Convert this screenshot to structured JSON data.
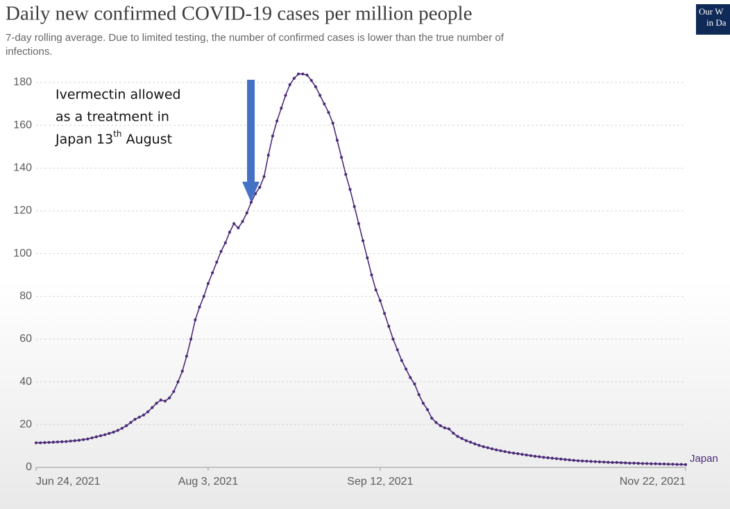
{
  "chart_data": {
    "type": "line",
    "title": "Daily new confirmed COVID-19 cases per million people",
    "subtitle": [
      "7-day rolling average. Due to limited testing, the number of confirmed cases is lower than the true number of",
      "infections."
    ],
    "logo": [
      "Our W",
      "in Da"
    ],
    "annotation": {
      "lines": [
        "Ivermectin allowed",
        "as a treatment in"
      ],
      "last_line": [
        "Japan 13",
        "th",
        " August"
      ]
    },
    "x": [
      "2021-06-24",
      "2021-06-25",
      "2021-06-26",
      "2021-06-27",
      "2021-06-28",
      "2021-06-29",
      "2021-06-30",
      "2021-07-01",
      "2021-07-02",
      "2021-07-03",
      "2021-07-04",
      "2021-07-05",
      "2021-07-06",
      "2021-07-07",
      "2021-07-08",
      "2021-07-09",
      "2021-07-10",
      "2021-07-11",
      "2021-07-12",
      "2021-07-13",
      "2021-07-14",
      "2021-07-15",
      "2021-07-16",
      "2021-07-17",
      "2021-07-18",
      "2021-07-19",
      "2021-07-20",
      "2021-07-21",
      "2021-07-22",
      "2021-07-23",
      "2021-07-24",
      "2021-07-25",
      "2021-07-26",
      "2021-07-27",
      "2021-07-28",
      "2021-07-29",
      "2021-07-30",
      "2021-07-31",
      "2021-08-01",
      "2021-08-02",
      "2021-08-03",
      "2021-08-04",
      "2021-08-05",
      "2021-08-06",
      "2021-08-07",
      "2021-08-08",
      "2021-08-09",
      "2021-08-10",
      "2021-08-11",
      "2021-08-12",
      "2021-08-13",
      "2021-08-14",
      "2021-08-15",
      "2021-08-16",
      "2021-08-17",
      "2021-08-18",
      "2021-08-19",
      "2021-08-20",
      "2021-08-21",
      "2021-08-22",
      "2021-08-23",
      "2021-08-24",
      "2021-08-25",
      "2021-08-26",
      "2021-08-27",
      "2021-08-28",
      "2021-08-29",
      "2021-08-30",
      "2021-08-31",
      "2021-09-01",
      "2021-09-02",
      "2021-09-03",
      "2021-09-04",
      "2021-09-05",
      "2021-09-06",
      "2021-09-07",
      "2021-09-08",
      "2021-09-09",
      "2021-09-10",
      "2021-09-11",
      "2021-09-12",
      "2021-09-13",
      "2021-09-14",
      "2021-09-15",
      "2021-09-16",
      "2021-09-17",
      "2021-09-18",
      "2021-09-19",
      "2021-09-20",
      "2021-09-21",
      "2021-09-22",
      "2021-09-23",
      "2021-09-24",
      "2021-09-25",
      "2021-09-26",
      "2021-09-27",
      "2021-09-28",
      "2021-09-29",
      "2021-09-30",
      "2021-10-01",
      "2021-10-02",
      "2021-10-03",
      "2021-10-04",
      "2021-10-05",
      "2021-10-06",
      "2021-10-07",
      "2021-10-08",
      "2021-10-09",
      "2021-10-10",
      "2021-10-11",
      "2021-10-12",
      "2021-10-13",
      "2021-10-14",
      "2021-10-15",
      "2021-10-16",
      "2021-10-17",
      "2021-10-18",
      "2021-10-19",
      "2021-10-20",
      "2021-10-21",
      "2021-10-22",
      "2021-10-23",
      "2021-10-24",
      "2021-10-25",
      "2021-10-26",
      "2021-10-27",
      "2021-10-28",
      "2021-10-29",
      "2021-10-30",
      "2021-10-31",
      "2021-11-01",
      "2021-11-02",
      "2021-11-03",
      "2021-11-04",
      "2021-11-05",
      "2021-11-06",
      "2021-11-07",
      "2021-11-08",
      "2021-11-09",
      "2021-11-10",
      "2021-11-11",
      "2021-11-12",
      "2021-11-13",
      "2021-11-14",
      "2021-11-15",
      "2021-11-16",
      "2021-11-17",
      "2021-11-18",
      "2021-11-19",
      "2021-11-20",
      "2021-11-21",
      "2021-11-22"
    ],
    "series": [
      {
        "name": "Japan",
        "color": "#4a2b78",
        "values": [
          11.5,
          11.5,
          11.6,
          11.7,
          11.8,
          11.9,
          12.0,
          12.1,
          12.3,
          12.5,
          12.7,
          13.0,
          13.3,
          13.8,
          14.3,
          14.8,
          15.3,
          15.9,
          16.5,
          17.3,
          18.3,
          19.5,
          21.0,
          22.5,
          23.5,
          24.5,
          26.0,
          28.0,
          30.0,
          31.5,
          31.0,
          32.5,
          35.5,
          40.0,
          45.0,
          52.0,
          60.0,
          69.0,
          75.0,
          80.0,
          86.0,
          91.0,
          96.0,
          101.0,
          105.0,
          110.0,
          114.0,
          112.0,
          115.0,
          119.0,
          124.0,
          128.0,
          131.0,
          136.0,
          146.0,
          155.0,
          162.0,
          168.0,
          174.0,
          179.0,
          182.0,
          184.0,
          184.0,
          183.5,
          181.0,
          178.0,
          174.0,
          170.0,
          166.0,
          161.0,
          153.0,
          145.0,
          137.0,
          130.0,
          122.0,
          114.0,
          106.0,
          98.0,
          90.0,
          83.0,
          78.0,
          72.0,
          66.0,
          60.0,
          55.0,
          50.0,
          46.0,
          42.0,
          39.0,
          34.0,
          30.0,
          27.0,
          23.0,
          21.0,
          19.5,
          18.5,
          18.0,
          16.0,
          14.5,
          13.5,
          12.5,
          11.8,
          11.0,
          10.3,
          9.7,
          9.2,
          8.7,
          8.2,
          7.8,
          7.4,
          7.0,
          6.7,
          6.4,
          6.1,
          5.8,
          5.5,
          5.2,
          5.0,
          4.7,
          4.5,
          4.3,
          4.1,
          3.9,
          3.7,
          3.5,
          3.3,
          3.1,
          3.0,
          2.9,
          2.8,
          2.7,
          2.6,
          2.5,
          2.4,
          2.3,
          2.3,
          2.2,
          2.1,
          2.0,
          2.0,
          1.9,
          1.8,
          1.8,
          1.7,
          1.7,
          1.6,
          1.6,
          1.5,
          1.5,
          1.4,
          1.4,
          1.3
        ]
      }
    ],
    "xlim": [
      "2021-06-24",
      "2021-11-22"
    ],
    "xticks": [
      {
        "value": "2021-06-24",
        "label": "Jun 24, 2021"
      },
      {
        "value": "2021-08-03",
        "label": "Aug 3, 2021"
      },
      {
        "value": "2021-09-12",
        "label": "Sep 12, 2021"
      },
      {
        "value": "2021-11-22",
        "label": "Nov 22, 2021"
      }
    ],
    "ylim": [
      0,
      180
    ],
    "yticks": [
      0,
      20,
      40,
      60,
      80,
      100,
      120,
      140,
      160,
      180
    ],
    "grid": true
  }
}
